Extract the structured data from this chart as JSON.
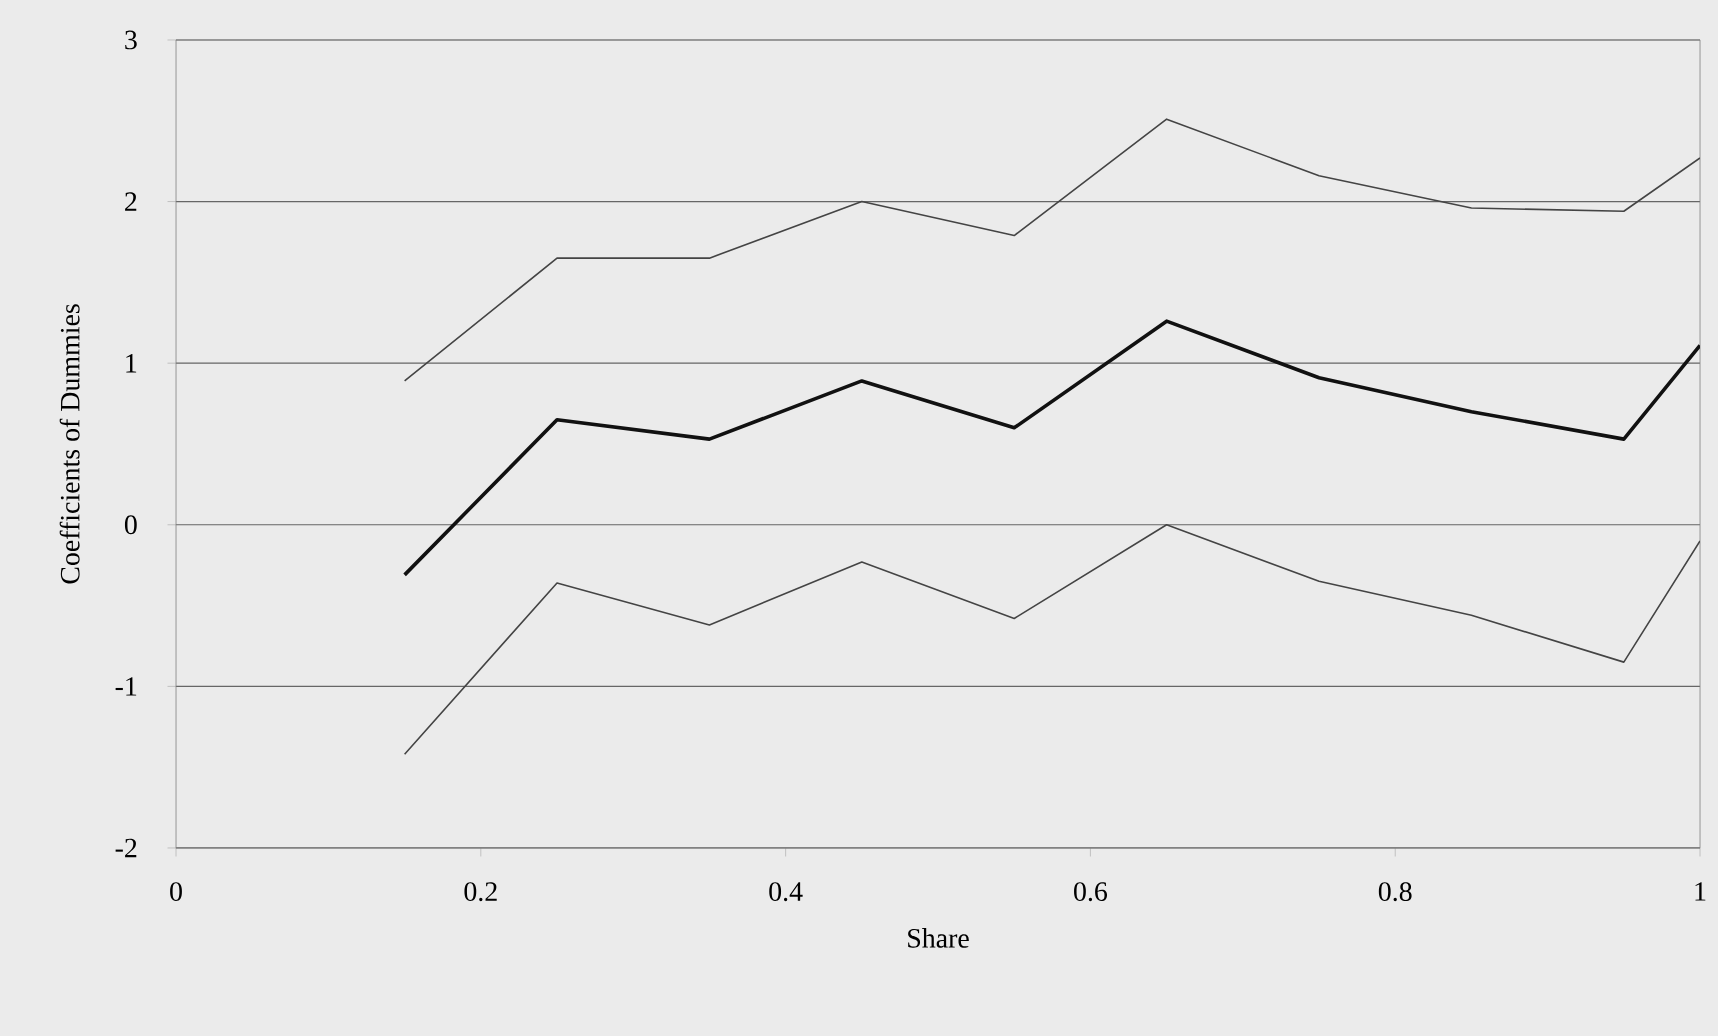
{
  "chart_data": {
    "type": "line",
    "xlabel": "Share",
    "ylabel": "Coefficients of Dummies",
    "x": [
      0.15,
      0.25,
      0.35,
      0.45,
      0.55,
      0.65,
      0.75,
      0.85,
      0.95,
      1.0
    ],
    "series": [
      {
        "color": "#444444",
        "values": [
          0.89,
          1.65,
          1.65,
          2.0,
          1.79,
          2.51,
          2.16,
          1.96,
          1.94,
          2.27
        ]
      },
      {
        "color": "#111111",
        "values": [
          -0.31,
          0.65,
          0.53,
          0.89,
          0.6,
          1.26,
          0.91,
          0.7,
          0.53,
          1.11
        ]
      },
      {
        "color": "#444444",
        "values": [
          -1.42,
          -0.36,
          -0.62,
          -0.23,
          -0.58,
          0.0,
          -0.35,
          -0.56,
          -0.85,
          -0.1
        ]
      }
    ],
    "xlim": [
      0,
      1
    ],
    "ylim": [
      -2,
      3
    ],
    "xticks": [
      0,
      0.2,
      0.4,
      0.6,
      0.8,
      1
    ],
    "yticks": [
      -2,
      -1,
      0,
      1,
      2,
      3
    ],
    "grid": "y",
    "marker": "none",
    "line_style": "solid"
  }
}
